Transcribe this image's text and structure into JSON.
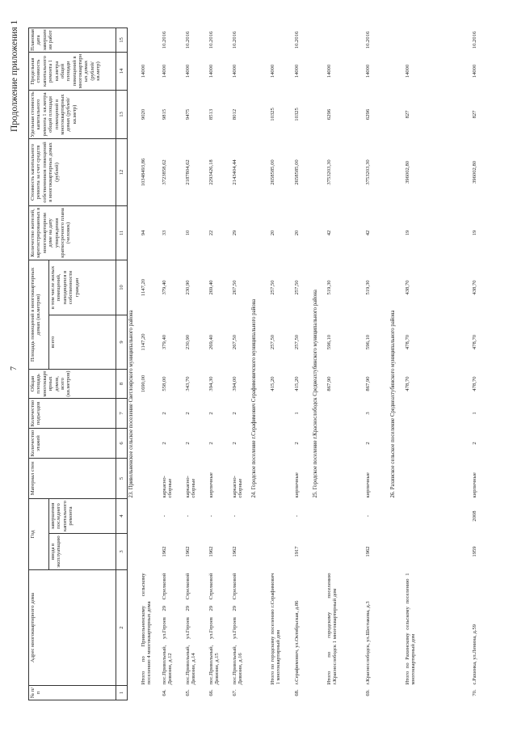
{
  "page": {
    "title": "Продолжение приложения 1",
    "number": "7"
  },
  "header": {
    "col1": "№ п/п",
    "col2": "Адрес многоквартирного дома",
    "year_group": "Год",
    "col3": "ввода в эксплуатацию",
    "col4": "завершения последнего капитального ремонта",
    "col5": "Материал стен",
    "col6": "Количество этажей",
    "col7": "Количество подъездов",
    "col8": "Общая площадь многоквартирных домов, всего (кв.метров)",
    "area_group": "Площадь помещений в многоквартирных домах (кв.метров)",
    "col9": "всего",
    "col10": "в том числе жилых помещений, находящихся в собственности граждан",
    "col11": "Количество жителей, зарегистрированных в многоквартирном доме на дату утверждения краткосрочного плана (человек)",
    "col12": "Стоимость капитального ремонта за счет средств собственников помещений в многоквартирных домах (рублей)",
    "col13": "Удельная стоимость капитального ремонта 1 кв.метра общей площади помещений в многоквартирных домах (рублей/кв.метр)",
    "col14": "Предельная стоимость капитального ремонта 1 кв.метра общей площади помещений в многоквартирных домах (рублей/кв.метр)",
    "col15": "Плановая дата завершения работ",
    "numbers": [
      "1",
      "2",
      "3",
      "4",
      "5",
      "6",
      "7",
      "8",
      "9",
      "10",
      "11",
      "12",
      "13",
      "14",
      "15"
    ]
  },
  "rows": [
    {
      "type": "section",
      "title": "23. Привольненское сельское поселение Светлоярского муниципального района"
    },
    {
      "type": "total",
      "cells": [
        "",
        "Итого по Привольненскому сельскому поселению 4 многоквартирных дома",
        "",
        "",
        "",
        "",
        "",
        "1690,00",
        "1147,20",
        "1147,20",
        "94",
        "10348493,86",
        "9020",
        "14000",
        ""
      ]
    },
    {
      "type": "item",
      "cells": [
        "64.",
        "пос.Привольный, ул.Героев 29 Стрелковой Дивизии, д.12",
        "1962",
        "-",
        "каркасно-сборные",
        "2",
        "2",
        "558,00",
        "379,40",
        "379,40",
        "33",
        "3723858,62",
        "9815",
        "14000",
        "10.2016"
      ]
    },
    {
      "type": "item",
      "cells": [
        "65.",
        "пос.Привольный, ул.Героев 29 Стрелковой Дивизии, д.14",
        "1962",
        "-",
        "каркасно-сборные",
        "2",
        "2",
        "343,70",
        "230,90",
        "230,90",
        "10",
        "2187804,62",
        "9475",
        "14000",
        "10.2016"
      ]
    },
    {
      "type": "item",
      "cells": [
        "66.",
        "пос.Привольный, ул.Героев 29 Стрелковой Дивизии, д.15",
        "1962",
        "-",
        "кирпичные",
        "2",
        "2",
        "394,30",
        "269,40",
        "269,40",
        "22",
        "2293426,18",
        "8513",
        "14000",
        "10.2016"
      ]
    },
    {
      "type": "item",
      "cells": [
        "67.",
        "пос.Привольный, ул.Героев 29 Стрелковой Дивизии, д.16",
        "1962",
        "-",
        "каркасно-сборные",
        "2",
        "2",
        "394,00",
        "267,50",
        "267,50",
        "29",
        "2143404,44",
        "8012",
        "14000",
        "10.2016"
      ]
    },
    {
      "type": "section",
      "title": "24. Городское поселение г.Серафимович Серафимовичского муниципального района"
    },
    {
      "type": "total",
      "cells": [
        "",
        "Итого по городскому поселению г.Серафимович 1 многоквартирный дом",
        "",
        "",
        "",
        "",
        "",
        "415,20",
        "257,50",
        "257,50",
        "20",
        "2658585,00",
        "10325",
        "14000",
        ""
      ]
    },
    {
      "type": "item",
      "cells": [
        "68.",
        "г.Серафимович, ул.Октябрьская, д.86",
        "1917",
        "-",
        "кирпичные",
        "2",
        "1",
        "415,20",
        "257,50",
        "257,50",
        "20",
        "2658585,00",
        "10325",
        "14000",
        "10.2016"
      ]
    },
    {
      "type": "section",
      "title": "25. Городское поселение г.Краснослободск Среднеахтубинского муниципального района"
    },
    {
      "type": "total",
      "cells": [
        "",
        "Итого по городскому поселению г.Краснослободск 1 многоквартирный дом",
        "",
        "",
        "",
        "",
        "",
        "867,90",
        "596,10",
        "519,30",
        "42",
        "3753203,30",
        "6296",
        "14000",
        ""
      ]
    },
    {
      "type": "item",
      "cells": [
        "69.",
        "г.Краснослободск, ул.Шестакова, д.3",
        "1962",
        "-",
        "кирпичные",
        "2",
        "3",
        "867,90",
        "596,10",
        "519,30",
        "42",
        "3753203,30",
        "6296",
        "14000",
        "10.2016"
      ]
    },
    {
      "type": "section",
      "title": "26. Рахинское сельское поселение Среднеахтубинского муниципального района"
    },
    {
      "type": "total",
      "cells": [
        "",
        "Итого по Рахинскому сельскому поселению 1 многоквартирный дом",
        "",
        "",
        "",
        "",
        "",
        "478,70",
        "478,70",
        "438,70",
        "19",
        "396002,80",
        "827",
        "14000",
        ""
      ]
    },
    {
      "type": "item",
      "cells": [
        "70.",
        "с.Рахинка, ул.Ленина, д.59",
        "1959",
        "2008",
        "кирпичные",
        "2",
        "1",
        "478,70",
        "478,70",
        "438,70",
        "19",
        "396002,80",
        "827",
        "14000",
        "10.2016"
      ]
    }
  ]
}
